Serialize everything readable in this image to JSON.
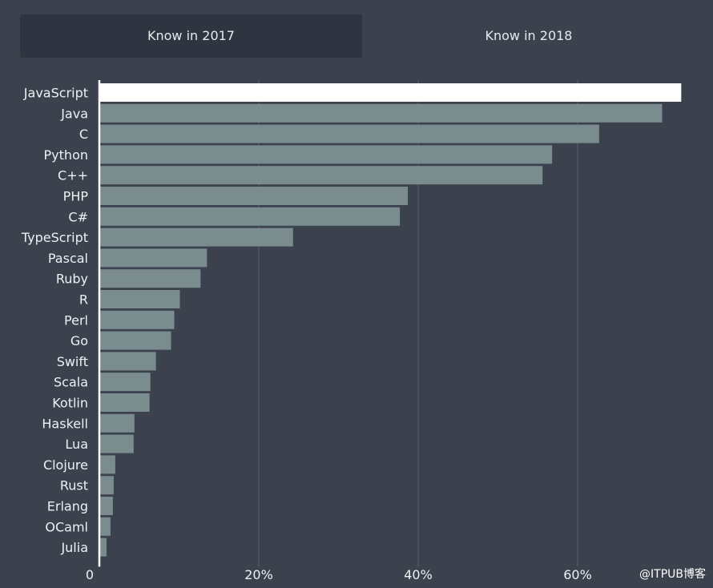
{
  "tabs": {
    "tab_2017": "Know in 2017",
    "tab_2018": "Know in 2018"
  },
  "watermark": "@ITPUB博客",
  "colors": {
    "background": "#3c424d",
    "highlight_bar": "#ffffff",
    "bar": "#7a8c8e",
    "gridline": "#5a606b",
    "axis": "#ffffff"
  },
  "chart_data": {
    "type": "bar",
    "orientation": "horizontal",
    "categories": [
      "JavaScript",
      "Java",
      "C",
      "Python",
      "C++",
      "PHP",
      "C#",
      "TypeScript",
      "Pascal",
      "Ruby",
      "R",
      "Perl",
      "Go",
      "Swift",
      "Scala",
      "Kotlin",
      "Haskell",
      "Lua",
      "Clojure",
      "Rust",
      "Erlang",
      "OCaml",
      "Julia"
    ],
    "values": [
      73,
      70.6,
      62.7,
      56.8,
      55.6,
      38.7,
      37.7,
      24.3,
      13.5,
      12.7,
      10.1,
      9.4,
      9.0,
      7.1,
      6.4,
      6.3,
      4.4,
      4.3,
      2.0,
      1.8,
      1.7,
      1.4,
      0.9
    ],
    "highlighted": "JavaScript",
    "xlim": [
      0,
      74
    ],
    "xticks": [
      0,
      20,
      40,
      60
    ],
    "xtick_labels": [
      "0",
      "20%",
      "40%",
      "60%"
    ],
    "grid": "vertical"
  }
}
